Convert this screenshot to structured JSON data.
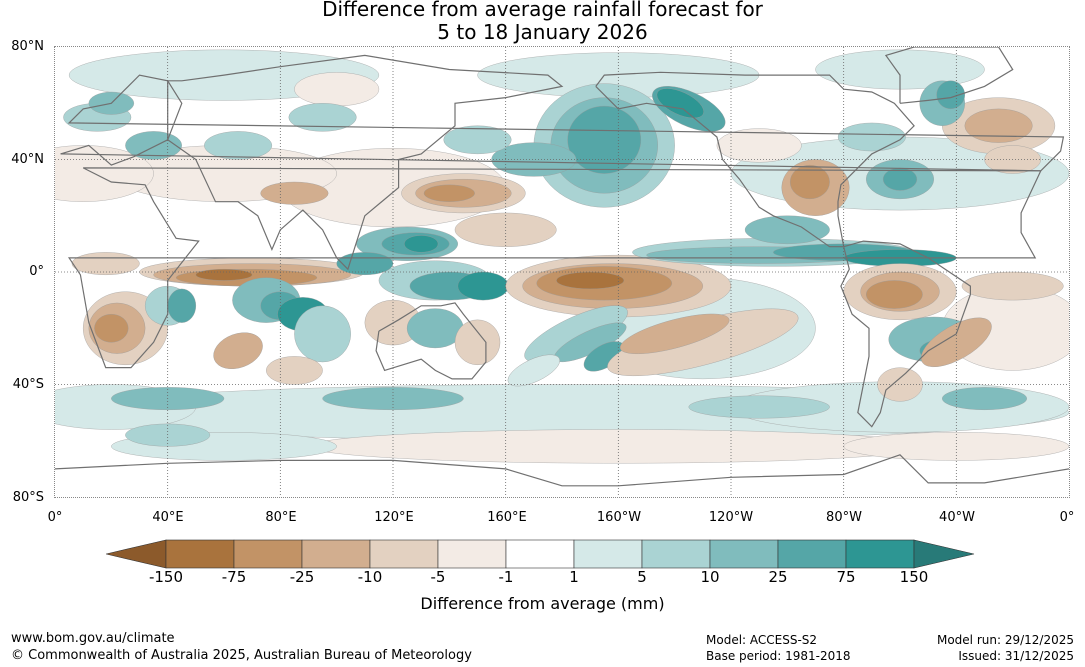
{
  "title": {
    "line1": "Difference from average rainfall forecast for",
    "line2": "5 to 18 January 2026"
  },
  "map": {
    "lat_labels": [
      "80°N",
      "40°N",
      "0°",
      "40°S",
      "80°S"
    ],
    "lon_labels": [
      "0°",
      "40°E",
      "80°E",
      "120°E",
      "160°E",
      "160°W",
      "120°W",
      "80°W",
      "40°W",
      "0°"
    ]
  },
  "colorbar": {
    "ticks": [
      "-150",
      "-75",
      "-25",
      "-10",
      "-5",
      "-1",
      "1",
      "5",
      "10",
      "25",
      "75",
      "150"
    ],
    "colors": [
      "#a9733d",
      "#c29366",
      "#d2ae8f",
      "#e3d1c1",
      "#f3ebe5",
      "#ffffff",
      "#d5e9e8",
      "#aad3d3",
      "#80bcbd",
      "#55a6a7",
      "#2d9693"
    ],
    "arrow_low_color": "#8c5a2b",
    "arrow_high_color": "#287a78",
    "label": "Difference from average (mm)"
  },
  "footer": {
    "url": "www.bom.gov.au/climate",
    "copyright": "© Commonwealth of Australia 2025, Australian Bureau of Meteorology",
    "model": "Model: ACCESS-S2",
    "base_period": "Base period: 1981-2018",
    "model_run": "Model run: 29/12/2025",
    "issued": "Issued: 31/12/2025"
  }
}
